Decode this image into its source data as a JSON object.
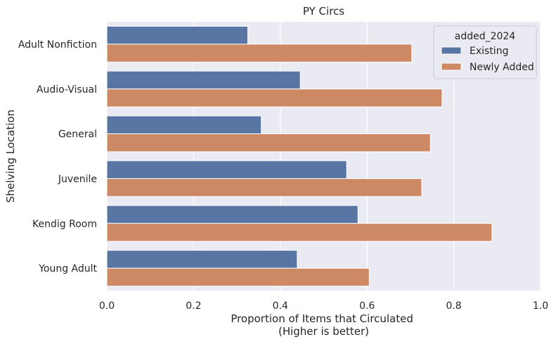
{
  "chart_data": {
    "type": "bar",
    "orientation": "horizontal",
    "title": "PY Circs",
    "xlabel": "Proportion of Items that Circulated\n(Higher is better)",
    "ylabel": "Shelving Location",
    "xlim": [
      0.0,
      1.0
    ],
    "xticks": [
      "0.0",
      "0.2",
      "0.4",
      "0.6",
      "0.8",
      "1.0"
    ],
    "categories": [
      "Adult Nonfiction",
      "Audio-Visual",
      "General",
      "Juvenile",
      "Kendig Room",
      "Young Adult"
    ],
    "series": [
      {
        "name": "Existing",
        "color": "#5875a4",
        "values": [
          0.325,
          0.446,
          0.356,
          0.553,
          0.579,
          0.439
        ]
      },
      {
        "name": "Newly Added",
        "color": "#cc8963",
        "values": [
          0.703,
          0.773,
          0.746,
          0.726,
          0.888,
          0.605
        ]
      }
    ],
    "legend": {
      "title": "added_2024",
      "placement": "top-right"
    },
    "grid": true,
    "background": "#eaeaf2"
  }
}
